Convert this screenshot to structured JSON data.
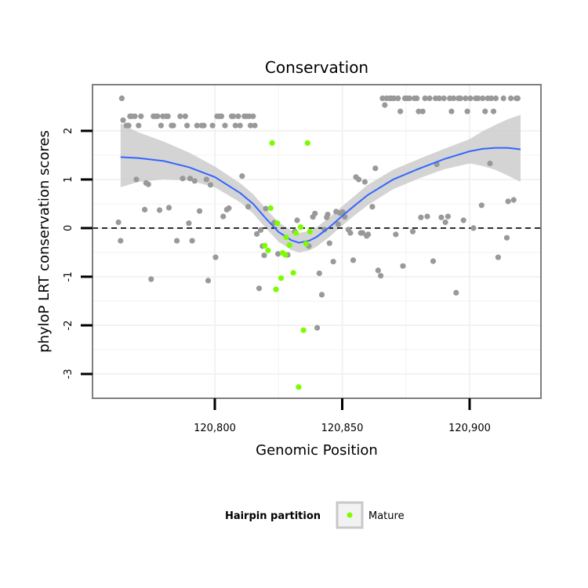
{
  "chart_data": {
    "type": "scatter",
    "title": "Conservation",
    "xlabel": "Genomic Position",
    "ylabel": "phyloP LRT conservation scores",
    "xlim": [
      120752,
      120928
    ],
    "ylim": [
      -3.5,
      2.95
    ],
    "x_ticks": [
      120800,
      120850,
      120900
    ],
    "x_tick_labels": [
      "120,800",
      "120,850",
      "120,900"
    ],
    "y_ticks": [
      -3,
      -2,
      -1,
      0,
      1,
      2
    ],
    "y_tick_labels": [
      "-3",
      "-2",
      "-1",
      "0",
      "1",
      "2"
    ],
    "reference_line": {
      "y": 0,
      "style": "dashed"
    },
    "grid": true,
    "legend": {
      "title": "Hairpin partition",
      "placement": "bottom",
      "entries": [
        {
          "label": "Mature",
          "color": "#7CFC00"
        }
      ]
    },
    "colors": {
      "other": "#999999",
      "mature": "#7CFC00",
      "smooth": "#3366FF",
      "ribbon": "#cccccc",
      "panel_border": "#7f7f7f",
      "grid": "#f2f2f2"
    },
    "series": [
      {
        "name": "Mature",
        "color": "#7CFC00",
        "points": [
          [
            120822.5,
            1.75
          ],
          [
            120836.4,
            1.75
          ],
          [
            120821.9,
            0.41
          ],
          [
            120824.5,
            0.1
          ],
          [
            120833.7,
            0.02
          ],
          [
            120837.3,
            -0.07
          ],
          [
            120828.0,
            -0.19
          ],
          [
            120819.6,
            -0.36
          ],
          [
            120820.9,
            -0.46
          ],
          [
            120826.6,
            -0.51
          ],
          [
            120827.7,
            -0.55
          ],
          [
            120829.3,
            -0.35
          ],
          [
            120830.8,
            -0.92
          ],
          [
            120826.0,
            -1.03
          ],
          [
            120824.0,
            -1.26
          ],
          [
            120834.8,
            -2.1
          ],
          [
            120832.9,
            -3.27
          ],
          [
            120831.9,
            -0.1
          ],
          [
            120835.8,
            -0.32
          ]
        ]
      },
      {
        "name": "",
        "color": "#999999",
        "points": [
          [
            120763.5,
            2.67
          ],
          [
            120764.0,
            2.22
          ],
          [
            120765.3,
            2.11
          ],
          [
            120766.2,
            2.11
          ],
          [
            120766.7,
            2.3
          ],
          [
            120767.4,
            2.3
          ],
          [
            120768.6,
            2.3
          ],
          [
            120769.2,
            1.0
          ],
          [
            120770.1,
            2.11
          ],
          [
            120771.0,
            2.3
          ],
          [
            120772.5,
            0.38
          ],
          [
            120773.0,
            0.93
          ],
          [
            120773.9,
            0.9
          ],
          [
            120775.0,
            -1.05
          ],
          [
            120775.9,
            2.3
          ],
          [
            120776.8,
            2.3
          ],
          [
            120777.5,
            2.3
          ],
          [
            120778.3,
            0.37
          ],
          [
            120778.9,
            2.11
          ],
          [
            120779.6,
            2.3
          ],
          [
            120780.9,
            2.3
          ],
          [
            120781.6,
            2.3
          ],
          [
            120782.0,
            0.42
          ],
          [
            120783.0,
            2.11
          ],
          [
            120783.7,
            2.11
          ],
          [
            120785.1,
            -0.26
          ],
          [
            120786.4,
            2.3
          ],
          [
            120787.4,
            1.02
          ],
          [
            120788.4,
            2.3
          ],
          [
            120789.1,
            2.11
          ],
          [
            120789.8,
            0.1
          ],
          [
            120790.3,
            1.02
          ],
          [
            120791.1,
            -0.26
          ],
          [
            120792.1,
            0.97
          ],
          [
            120793.0,
            2.11
          ],
          [
            120794.0,
            0.35
          ],
          [
            120794.9,
            2.11
          ],
          [
            120795.7,
            2.11
          ],
          [
            120796.7,
            1.0
          ],
          [
            120797.4,
            -1.08
          ],
          [
            120798.3,
            0.89
          ],
          [
            120799.1,
            2.11
          ],
          [
            120800.3,
            -0.6
          ],
          [
            120800.9,
            2.3
          ],
          [
            120801.9,
            2.3
          ],
          [
            120802.6,
            2.3
          ],
          [
            120803.3,
            0.24
          ],
          [
            120804.0,
            2.11
          ],
          [
            120804.7,
            0.38
          ],
          [
            120805.5,
            0.41
          ],
          [
            120806.6,
            2.3
          ],
          [
            120807.3,
            2.3
          ],
          [
            120808.1,
            2.11
          ],
          [
            120809.2,
            2.3
          ],
          [
            120809.9,
            2.11
          ],
          [
            120810.7,
            1.07
          ],
          [
            120811.6,
            2.3
          ],
          [
            120812.5,
            2.3
          ],
          [
            120813.1,
            0.44
          ],
          [
            120813.5,
            2.3
          ],
          [
            120814.0,
            2.11
          ],
          [
            120815.0,
            2.3
          ],
          [
            120815.7,
            2.11
          ],
          [
            120816.5,
            -0.12
          ],
          [
            120817.4,
            -1.24
          ],
          [
            120818.0,
            -0.04
          ],
          [
            120818.7,
            -0.37
          ],
          [
            120819.4,
            -0.56
          ],
          [
            120820.0,
            0.4
          ],
          [
            120823.3,
            0.11
          ],
          [
            120824.8,
            -0.53
          ],
          [
            120828.6,
            -0.55
          ],
          [
            120831.4,
            -0.07
          ],
          [
            120832.3,
            0.16
          ],
          [
            120836.9,
            -0.37
          ],
          [
            120838.5,
            0.23
          ],
          [
            120839.3,
            0.3
          ],
          [
            120840.2,
            -2.05
          ],
          [
            120841.0,
            -0.93
          ],
          [
            120842.0,
            -1.37
          ],
          [
            120843.0,
            -0.03
          ],
          [
            120843.9,
            0.22
          ],
          [
            120844.3,
            0.28
          ],
          [
            120845.0,
            -0.31
          ],
          [
            120846.5,
            -0.69
          ],
          [
            120847.6,
            0.34
          ],
          [
            120848.4,
            0.08
          ],
          [
            120849.1,
            0.31
          ],
          [
            120850.2,
            0.33
          ],
          [
            120851.0,
            0.23
          ],
          [
            120852.4,
            -0.03
          ],
          [
            120853.2,
            -0.1
          ],
          [
            120854.3,
            -0.66
          ],
          [
            120855.4,
            1.05
          ],
          [
            120856.5,
            1.0
          ],
          [
            120857.3,
            -0.1
          ],
          [
            120858.0,
            -0.1
          ],
          [
            120858.9,
            0.95
          ],
          [
            120859.6,
            -0.16
          ],
          [
            120860.2,
            -0.13
          ],
          [
            120861.8,
            0.44
          ],
          [
            120863.0,
            1.23
          ],
          [
            120864.1,
            -0.87
          ],
          [
            120865.1,
            -0.98
          ],
          [
            120865.8,
            2.67
          ],
          [
            120866.7,
            2.53
          ],
          [
            120867.4,
            2.67
          ],
          [
            120868.6,
            2.67
          ],
          [
            120869.3,
            2.67
          ],
          [
            120870.3,
            2.67
          ],
          [
            120871.0,
            -0.13
          ],
          [
            120871.9,
            2.67
          ],
          [
            120872.8,
            2.4
          ],
          [
            120873.8,
            -0.78
          ],
          [
            120874.6,
            2.67
          ],
          [
            120875.5,
            2.67
          ],
          [
            120876.4,
            2.67
          ],
          [
            120877.7,
            -0.07
          ],
          [
            120878.3,
            2.67
          ],
          [
            120879.3,
            2.67
          ],
          [
            120880.0,
            2.4
          ],
          [
            120880.9,
            0.22
          ],
          [
            120881.6,
            2.4
          ],
          [
            120882.5,
            2.67
          ],
          [
            120883.4,
            0.24
          ],
          [
            120884.3,
            2.67
          ],
          [
            120885.7,
            -0.68
          ],
          [
            120886.6,
            2.67
          ],
          [
            120887.1,
            1.31
          ],
          [
            120888.1,
            2.67
          ],
          [
            120888.9,
            0.22
          ],
          [
            120889.9,
            2.67
          ],
          [
            120890.5,
            0.12
          ],
          [
            120891.5,
            0.24
          ],
          [
            120892.2,
            2.67
          ],
          [
            120892.9,
            2.4
          ],
          [
            120893.7,
            2.67
          ],
          [
            120894.7,
            -1.33
          ],
          [
            120895.6,
            2.67
          ],
          [
            120896.4,
            2.67
          ],
          [
            120897.6,
            0.16
          ],
          [
            120898.4,
            2.67
          ],
          [
            120899.1,
            2.4
          ],
          [
            120900.3,
            2.67
          ],
          [
            120901.5,
            0.0
          ],
          [
            120902.4,
            2.67
          ],
          [
            120903.3,
            2.67
          ],
          [
            120904.7,
            0.47
          ],
          [
            120905.1,
            2.67
          ],
          [
            120906.1,
            2.4
          ],
          [
            120907.1,
            2.67
          ],
          [
            120908.0,
            1.33
          ],
          [
            120908.5,
            2.67
          ],
          [
            120909.4,
            2.4
          ],
          [
            120910.3,
            2.67
          ],
          [
            120911.2,
            -0.6
          ],
          [
            120913.3,
            2.67
          ],
          [
            120914.6,
            -0.2
          ],
          [
            120915.1,
            0.55
          ],
          [
            120916.2,
            2.67
          ],
          [
            120917.3,
            0.58
          ],
          [
            120918.3,
            2.67
          ],
          [
            120918.9,
            2.67
          ],
          [
            120762.2,
            0.12
          ],
          [
            120763.0,
            -0.26
          ]
        ]
      }
    ],
    "smooth": {
      "x": [
        120763,
        120770,
        120780,
        120790,
        120800,
        120810,
        120815,
        120820,
        120825,
        120830,
        120833,
        120837,
        120840,
        120845,
        120850,
        120855,
        120860,
        120870,
        120880,
        120890,
        120900,
        120905,
        120910,
        120915,
        120920
      ],
      "y": [
        1.46,
        1.44,
        1.38,
        1.25,
        1.05,
        0.72,
        0.5,
        0.2,
        -0.08,
        -0.25,
        -0.3,
        -0.26,
        -0.18,
        0.02,
        0.25,
        0.47,
        0.68,
        1.0,
        1.22,
        1.42,
        1.58,
        1.63,
        1.65,
        1.65,
        1.62
      ],
      "lower": [
        0.84,
        0.95,
        1.0,
        0.98,
        0.84,
        0.53,
        0.3,
        0.0,
        -0.28,
        -0.45,
        -0.5,
        -0.46,
        -0.38,
        -0.18,
        0.05,
        0.27,
        0.47,
        0.8,
        1.02,
        1.21,
        1.33,
        1.28,
        1.2,
        1.08,
        0.95
      ],
      "upper": [
        2.15,
        1.97,
        1.78,
        1.55,
        1.27,
        0.92,
        0.7,
        0.4,
        0.12,
        -0.05,
        -0.1,
        -0.06,
        0.02,
        0.22,
        0.45,
        0.67,
        0.89,
        1.2,
        1.42,
        1.63,
        1.83,
        1.99,
        2.12,
        2.24,
        2.33
      ]
    }
  }
}
